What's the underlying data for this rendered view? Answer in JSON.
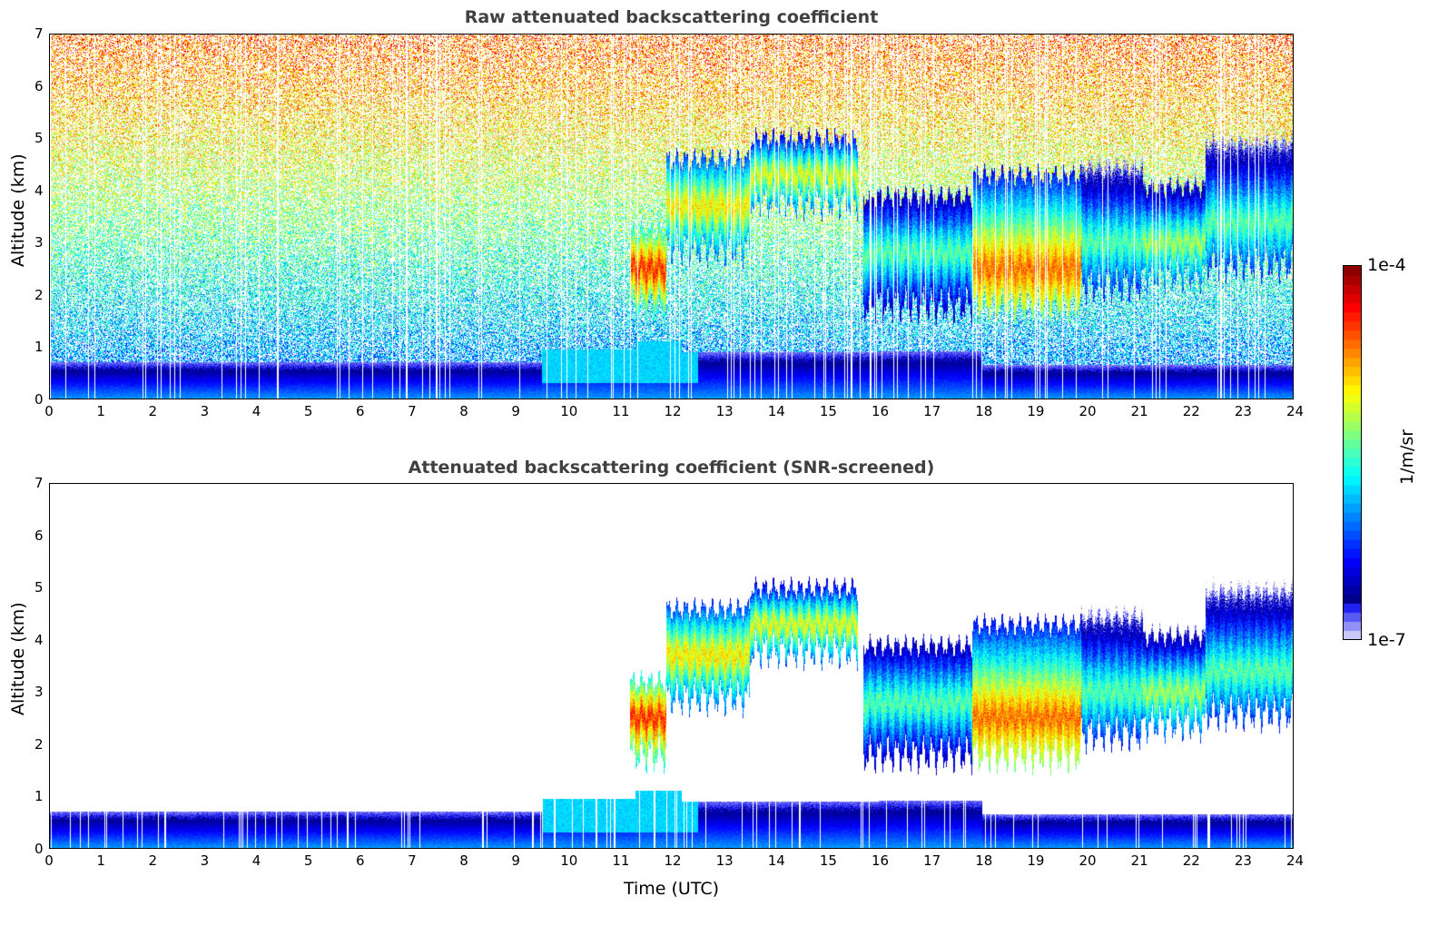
{
  "chart_data": [
    {
      "type": "heatmap",
      "title": "Raw attenuated backscattering coefficient",
      "xlabel": "",
      "ylabel": "Altitude (km)",
      "xlim": [
        0,
        24
      ],
      "ylim": [
        0,
        7
      ],
      "xticks": [
        "0",
        "1",
        "2",
        "3",
        "4",
        "5",
        "6",
        "7",
        "8",
        "9",
        "10",
        "11",
        "12",
        "13",
        "14",
        "15",
        "16",
        "17",
        "18",
        "19",
        "20",
        "21",
        "22",
        "23",
        "24"
      ],
      "yticks": [
        "0",
        "1",
        "2",
        "3",
        "4",
        "5",
        "6",
        "7"
      ],
      "screened": false
    },
    {
      "type": "heatmap",
      "title": "Attenuated backscattering coefficient (SNR-screened)",
      "xlabel": "Time (UTC)",
      "ylabel": "Altitude (km)",
      "xlim": [
        0,
        24
      ],
      "ylim": [
        0,
        7
      ],
      "xticks": [
        "0",
        "1",
        "2",
        "3",
        "4",
        "5",
        "6",
        "7",
        "8",
        "9",
        "10",
        "11",
        "12",
        "13",
        "14",
        "15",
        "16",
        "17",
        "18",
        "19",
        "20",
        "21",
        "22",
        "23",
        "24"
      ],
      "yticks": [
        "0",
        "1",
        "2",
        "3",
        "4",
        "5",
        "6",
        "7"
      ],
      "screened": true
    }
  ],
  "colorbar": {
    "label": "1/m/sr",
    "min_label": "1e-7",
    "max_label": "1e-4",
    "scale": "log",
    "range": [
      1e-07,
      0.0001
    ]
  },
  "features": {
    "cloud_layers": [
      {
        "t0": 11.2,
        "t1": 11.9,
        "base": 1.8,
        "top": 3.2,
        "peak_log10": -4.4,
        "peak_alt": 2.5
      },
      {
        "t0": 11.9,
        "t1": 13.5,
        "base": 2.9,
        "top": 4.6,
        "peak_log10": -4.9,
        "peak_alt": 3.7
      },
      {
        "t0": 13.5,
        "t1": 15.6,
        "base": 3.8,
        "top": 5.0,
        "peak_log10": -5.0,
        "peak_alt": 4.3
      },
      {
        "t0": 15.7,
        "t1": 17.8,
        "base": 1.8,
        "top": 3.9,
        "peak_log10": -5.4,
        "peak_alt": 2.8
      },
      {
        "t0": 17.8,
        "t1": 19.9,
        "base": 1.8,
        "top": 4.3,
        "peak_log10": -4.6,
        "peak_alt": 2.5
      },
      {
        "t0": 19.9,
        "t1": 21.1,
        "base": 2.2,
        "top": 4.5,
        "peak_log10": -5.4,
        "peak_alt": 3.0
      },
      {
        "t0": 21.1,
        "t1": 22.3,
        "base": 2.4,
        "top": 4.1,
        "peak_log10": -5.2,
        "peak_alt": 3.0
      },
      {
        "t0": 22.3,
        "t1": 24.0,
        "base": 2.6,
        "top": 5.0,
        "peak_log10": -5.4,
        "peak_alt": 3.4
      }
    ],
    "boundary_layer_top_km": [
      {
        "t0": 0,
        "t1": 9.5,
        "top": 0.7
      },
      {
        "t0": 9.5,
        "t1": 11.3,
        "top": 0.95
      },
      {
        "t0": 11.3,
        "t1": 12.2,
        "top": 1.1
      },
      {
        "t0": 12.2,
        "t1": 16,
        "top": 0.9
      },
      {
        "t0": 16,
        "t1": 18,
        "top": 0.92
      },
      {
        "t0": 18,
        "t1": 24,
        "top": 0.65
      }
    ]
  }
}
